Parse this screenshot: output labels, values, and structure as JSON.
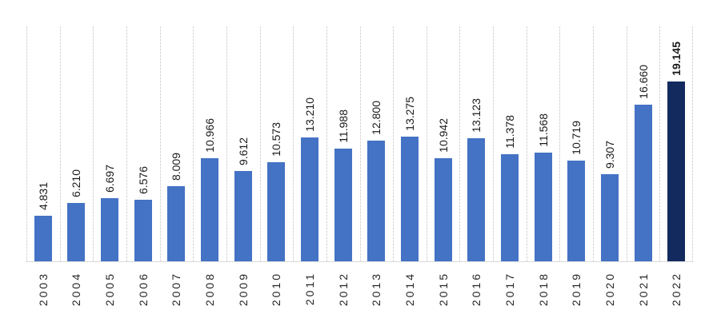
{
  "chart_data": {
    "type": "bar",
    "title": "",
    "xlabel": "",
    "ylabel": "",
    "categories": [
      "2003",
      "2004",
      "2005",
      "2006",
      "2007",
      "2008",
      "2009",
      "2010",
      "2011",
      "2012",
      "2013",
      "2014",
      "2015",
      "2016",
      "2017",
      "2018",
      "2019",
      "2020",
      "2021",
      "2022"
    ],
    "values": [
      4831,
      6210,
      6697,
      6576,
      8009,
      10966,
      9612,
      10573,
      13210,
      11988,
      12800,
      13275,
      10942,
      13123,
      11378,
      11568,
      10719,
      9307,
      16660,
      19145
    ],
    "value_labels": [
      "4.831",
      "6.210",
      "6.697",
      "6.576",
      "8.009",
      "10.966",
      "9.612",
      "10.573",
      "13.210",
      "11.988",
      "12.800",
      "13.275",
      "10.942",
      "13.123",
      "11.378",
      "11.568",
      "10.719",
      "9.307",
      "16.660",
      "19.145"
    ],
    "ylim": [
      0,
      25000
    ],
    "legend": "none",
    "grid": "vertical-category-boundaries",
    "highlight_index": 19,
    "colors": {
      "bar": "#4472C4",
      "highlight_bar": "#132A5E",
      "gridline": "#D3D3D3",
      "axis_line": "#D9D9D9",
      "label_text": "#1A1A1A",
      "background": "#FFFFFF"
    }
  }
}
